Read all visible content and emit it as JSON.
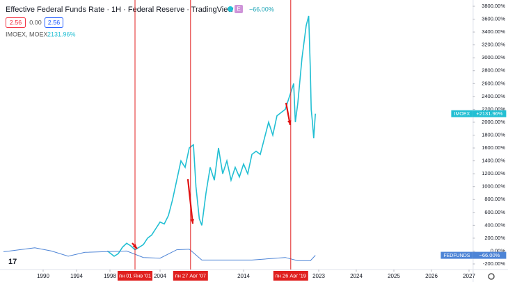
{
  "chart_data": {
    "type": "line",
    "title": "Effective Federal Funds Rate · 1H · Federal Reserve · TradingView",
    "badge": "E",
    "change": "−66.00%",
    "quote_boxes": [
      "2.56",
      "0.00",
      "2.56"
    ],
    "compare_label": "IMOEX, MOEX",
    "compare_value": "2131.96%",
    "ylim": [
      -200,
      3800
    ],
    "yticks": [
      {
        "value": -200,
        "label": "-200.00%"
      },
      {
        "value": 0,
        "label": "0.00%"
      },
      {
        "value": 200,
        "label": "200.00%"
      },
      {
        "value": 400,
        "label": "400.00%"
      },
      {
        "value": 600,
        "label": "600.00%"
      },
      {
        "value": 800,
        "label": "800.00%"
      },
      {
        "value": 1000,
        "label": "1000.00%"
      },
      {
        "value": 1200,
        "label": "1200.00%"
      },
      {
        "value": 1400,
        "label": "1400.00%"
      },
      {
        "value": 1600,
        "label": "1600.00%"
      },
      {
        "value": 1800,
        "label": "1800.00%"
      },
      {
        "value": 2000,
        "label": "2000.00%"
      },
      {
        "value": 2200,
        "label": "2200.00%"
      },
      {
        "value": 2400,
        "label": "2400.00%"
      },
      {
        "value": 2600,
        "label": "2600.00%"
      },
      {
        "value": 2800,
        "label": "2800.00%"
      },
      {
        "value": 3000,
        "label": "3000.00%"
      },
      {
        "value": 3200,
        "label": "3200.00%"
      },
      {
        "value": 3400,
        "label": "3400.00%"
      },
      {
        "value": 3600,
        "label": "3600.00%"
      },
      {
        "value": 3800,
        "label": "3800.00%"
      }
    ],
    "xlim": [
      1985.25,
      2027.1
    ],
    "xticks": [
      1990,
      1994,
      1998,
      2004,
      2014,
      2023,
      2024,
      2025,
      2026,
      2027
    ],
    "grid": false,
    "markers": [
      {
        "x": 2001.0,
        "label": "пн 01 Янв '01"
      },
      {
        "x": 2007.65,
        "label": "пн 27 Авг '07"
      },
      {
        "x": 2019.65,
        "label": "пн 26 Авг '19"
      }
    ],
    "series": [
      {
        "name": "IMOEX",
        "color": "#22bfd3",
        "last_label": "+2131.96%",
        "x": [
          1997.7,
          1998.5,
          1999,
          1999.5,
          2000,
          2000.5,
          2001,
          2001.5,
          2002,
          2002.5,
          2003,
          2003.5,
          2004,
          2004.5,
          2005,
          2005.5,
          2006,
          2006.5,
          2007,
          2007.5,
          2008,
          2008.3,
          2008.7,
          2009,
          2009.5,
          2010,
          2010.5,
          2011,
          2011.5,
          2012,
          2012.5,
          2013,
          2013.5,
          2014,
          2014.5,
          2015,
          2015.5,
          2016,
          2016.5,
          2017,
          2017.5,
          2018,
          2018.5,
          2019,
          2019.5,
          2020,
          2020.2,
          2020.5,
          2021,
          2021.5,
          2021.8,
          2022.0,
          2022.1,
          2022.25,
          2022.4,
          2022.6
        ],
        "values": [
          0,
          -80,
          -40,
          60,
          120,
          80,
          20,
          60,
          100,
          200,
          250,
          350,
          450,
          420,
          550,
          800,
          1100,
          1400,
          1300,
          1600,
          1650,
          1000,
          500,
          400,
          900,
          1300,
          1100,
          1600,
          1200,
          1400,
          1100,
          1300,
          1150,
          1350,
          1200,
          1500,
          1550,
          1500,
          1750,
          2000,
          1800,
          2100,
          2150,
          2200,
          2400,
          2600,
          2000,
          2300,
          3000,
          3500,
          3650,
          2800,
          2200,
          2000,
          1750,
          2131.96
        ]
      },
      {
        "name": "FEDFUNDS",
        "color": "#4d84d6",
        "last_label": "−66.00%",
        "x": [
          1985.25,
          1986,
          1989,
          1991,
          1993,
          1995,
          2000,
          2002,
          2004,
          2006,
          2007.5,
          2009,
          2015,
          2019,
          2020.5,
          2022,
          2022.6
        ],
        "values": [
          -10,
          0,
          50,
          0,
          -80,
          -20,
          0,
          -100,
          -110,
          20,
          30,
          -140,
          -140,
          -100,
          -150,
          -150,
          -66
        ]
      }
    ]
  }
}
